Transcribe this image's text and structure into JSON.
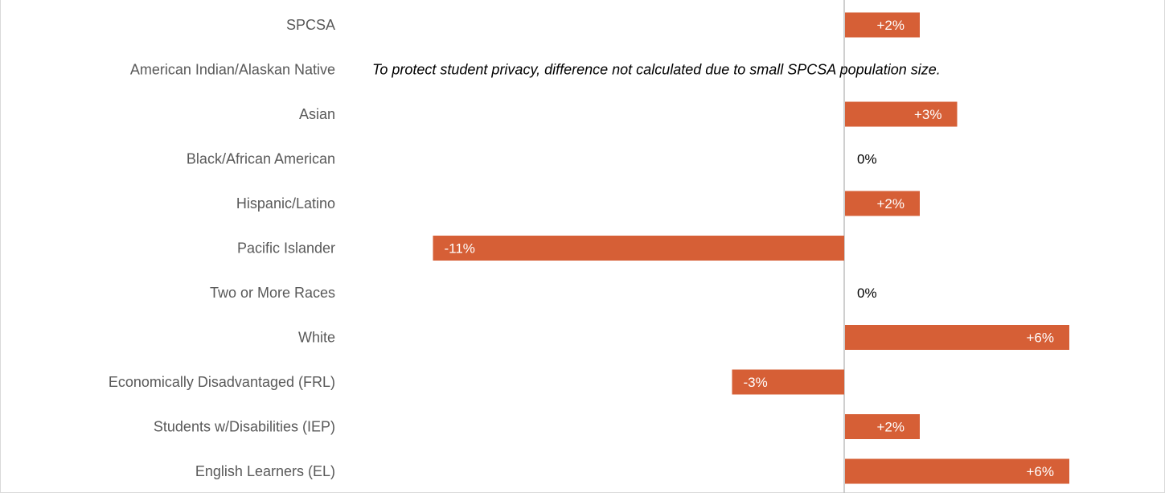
{
  "chart_data": {
    "type": "bar",
    "orientation": "horizontal",
    "categories": [
      "SPCSA",
      "American Indian/Alaskan Native",
      "Asian",
      "Black/African American",
      "Hispanic/Latino",
      "Pacific Islander",
      "Two or More Races",
      "White",
      "Economically Disadvantaged (FRL)",
      "Students w/Disabilities (IEP)",
      "English Learners (EL)"
    ],
    "values": [
      2,
      null,
      3,
      0,
      2,
      -11,
      0,
      6,
      -3,
      2,
      6
    ],
    "data_labels": [
      "+2%",
      "",
      "+3%",
      "0%",
      "+2%",
      "-11%",
      "0%",
      "+6%",
      "-3%",
      "+2%",
      "+6%"
    ],
    "annotations": [
      {
        "category": "American Indian/Alaskan Native",
        "text": "To protect student privacy, difference not calculated due to small SPCSA population size."
      }
    ],
    "xlim": [
      -11,
      6
    ],
    "grid": false,
    "legend": "none",
    "colors": {
      "bar": "#D65F36",
      "axis": "#bfbfbf",
      "label_on_bar": "#ffffff",
      "label_off_bar": "#000000",
      "category": "#595959"
    }
  }
}
